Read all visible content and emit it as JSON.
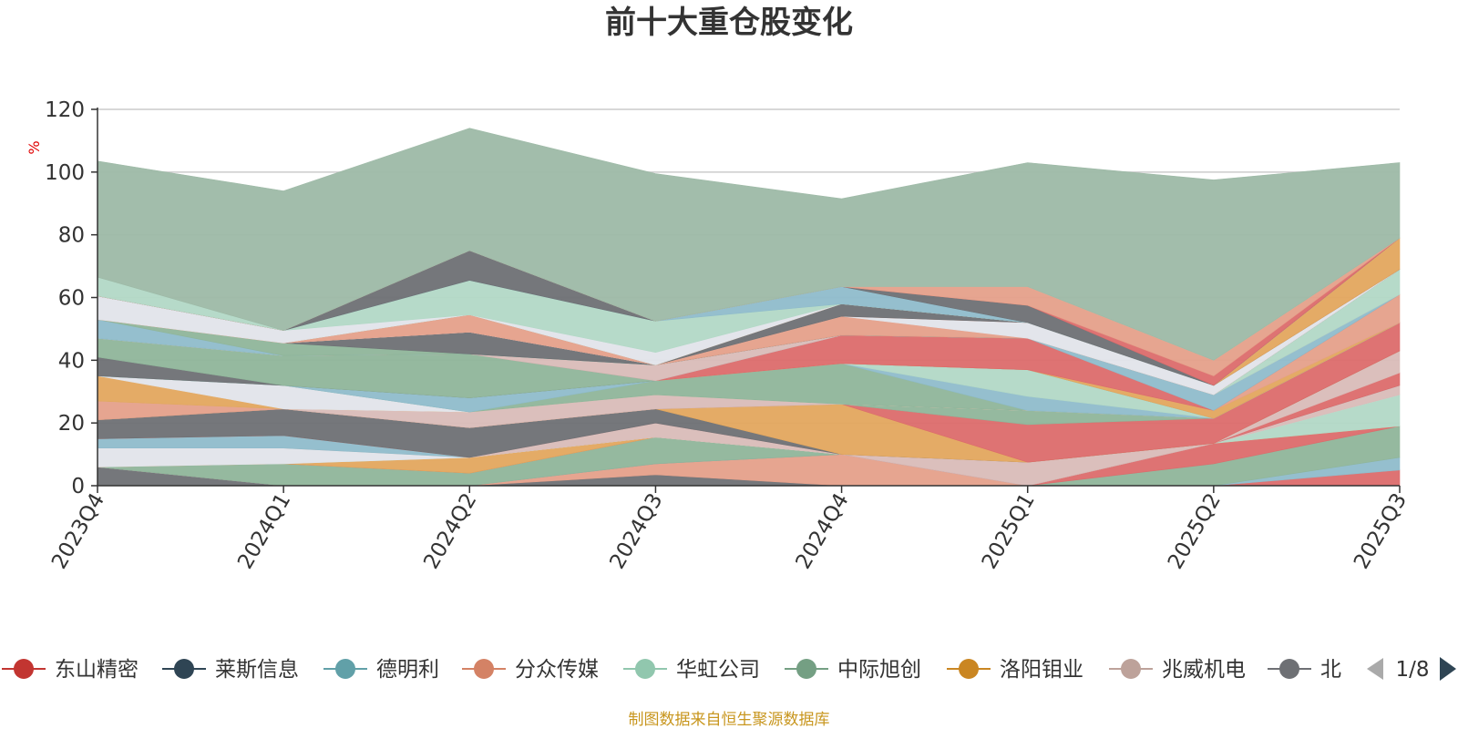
{
  "chart_data": {
    "type": "area",
    "title": "前十大重仓股变化",
    "ylabel": "%",
    "ylim": [
      0,
      120
    ],
    "yticks": [
      0,
      20,
      40,
      60,
      80,
      100,
      120
    ],
    "categories": [
      "2023Q4",
      "2024Q1",
      "2024Q2",
      "2024Q3",
      "2024Q4",
      "2025Q1",
      "2025Q2",
      "2025Q3"
    ],
    "grid": true,
    "stacked": true,
    "series": [
      {
        "name": "北",
        "color": "#6e7074",
        "values": [
          6,
          0,
          0,
          3.5,
          0,
          0,
          0,
          0
        ]
      },
      {
        "name": "",
        "color": "#e5a08a",
        "values": [
          0,
          0,
          0,
          3.5,
          10,
          0,
          0,
          0
        ]
      },
      {
        "name": "东山精密",
        "color": "#dc6b6b",
        "values": [
          0,
          0,
          0,
          0,
          0,
          0,
          0,
          5
        ]
      },
      {
        "name": "德明利",
        "color": "#8fbccb",
        "values": [
          0,
          0,
          0,
          0,
          0,
          0,
          0,
          4
        ]
      },
      {
        "name": "中际旭创",
        "color": "#8fb59a",
        "values": [
          0,
          7,
          4,
          8.5,
          0,
          0,
          7,
          10
        ]
      },
      {
        "name": "",
        "color": "#dc6b6b",
        "values": [
          0,
          0,
          0,
          0,
          0,
          0,
          6.5,
          0
        ]
      },
      {
        "name": "洛阳钼业",
        "color": "#e3a75e",
        "values": [
          0,
          0,
          5,
          0,
          0,
          0,
          0,
          0
        ]
      },
      {
        "name": "华虹公司",
        "color": "#b2d8c6",
        "values": [
          0,
          0,
          0,
          0,
          0,
          0,
          0,
          10
        ]
      },
      {
        "name": "",
        "color": "#e1e4ea",
        "values": [
          6,
          5,
          0,
          0,
          0,
          0,
          0,
          0
        ]
      },
      {
        "name": "兆威机电",
        "color": "#d9bcb8",
        "values": [
          0,
          0,
          0,
          4.5,
          0,
          0,
          0,
          3
        ]
      },
      {
        "name": "",
        "color": "#8fbccb",
        "values": [
          3,
          4,
          0,
          0,
          0,
          0,
          0,
          0
        ]
      },
      {
        "name": "",
        "color": "#dc6b6b",
        "values": [
          0,
          0,
          0,
          0,
          0,
          0,
          0,
          4
        ]
      },
      {
        "name": "",
        "color": "#d9bcb8",
        "values": [
          0,
          0,
          0,
          0,
          0,
          7.5,
          0,
          7
        ]
      },
      {
        "name": "",
        "color": "#6e7074",
        "values": [
          6,
          8.5,
          9.5,
          4.5,
          0,
          0,
          0,
          0
        ]
      },
      {
        "name": "",
        "color": "#e3a75e",
        "values": [
          0,
          0,
          0,
          0,
          16,
          0,
          0,
          0
        ]
      },
      {
        "name": "",
        "color": "#dc6b6b",
        "values": [
          0,
          0,
          0,
          0,
          0,
          12,
          8,
          9
        ]
      },
      {
        "name": "",
        "color": "#8fb59a",
        "values": [
          0,
          0,
          0,
          0,
          0,
          4.5,
          0,
          0
        ]
      },
      {
        "name": "",
        "color": "#e5a08a",
        "values": [
          6,
          0,
          0,
          0,
          0,
          0,
          0,
          0
        ]
      },
      {
        "name": "",
        "color": "#d9bcb8",
        "values": [
          0,
          0,
          5,
          4.5,
          0,
          0,
          0,
          0
        ]
      },
      {
        "name": "",
        "color": "#e3a75e",
        "values": [
          8,
          0,
          0,
          0,
          0,
          0,
          0,
          0
        ]
      },
      {
        "name": "",
        "color": "#e1e4ea",
        "values": [
          0,
          7.5,
          0,
          0,
          0,
          0,
          0,
          0
        ]
      },
      {
        "name": "",
        "color": "#8fb59a",
        "values": [
          0,
          0,
          0,
          4.5,
          13,
          0,
          0,
          0
        ]
      },
      {
        "name": "",
        "color": "#8fbccb",
        "values": [
          0,
          0,
          4.5,
          0,
          0,
          4.5,
          0,
          0
        ]
      },
      {
        "name": "",
        "color": "#b2d8c6",
        "values": [
          0,
          0,
          0,
          0,
          0,
          8.5,
          0,
          0
        ]
      },
      {
        "name": "",
        "color": "#6e7074",
        "values": [
          6,
          0,
          0,
          0,
          0,
          0,
          0,
          0
        ]
      },
      {
        "name": "",
        "color": "#8fb59a",
        "values": [
          6,
          9.5,
          14,
          0,
          0,
          0,
          0,
          0
        ]
      },
      {
        "name": "",
        "color": "#b2d8c6",
        "values": [
          0,
          0,
          0,
          0,
          0,
          0,
          0,
          0
        ]
      },
      {
        "name": "",
        "color": "#e3a75e",
        "values": [
          0,
          0,
          0,
          0,
          0,
          0,
          2.5,
          0
        ]
      },
      {
        "name": "",
        "color": "#e5a08a",
        "values": [
          0,
          0,
          0,
          0,
          0,
          0,
          0,
          9
        ]
      },
      {
        "name": "",
        "color": "#dc6b6b",
        "values": [
          0,
          0,
          0,
          0,
          9,
          10,
          0,
          0
        ]
      },
      {
        "name": "",
        "color": "#8fbccb",
        "values": [
          0,
          0,
          0,
          0,
          0,
          0,
          5,
          0
        ]
      },
      {
        "name": "",
        "color": "#d9bcb8",
        "values": [
          0,
          0,
          0,
          5,
          0,
          0,
          0,
          0
        ]
      },
      {
        "name": "",
        "color": "#b2d8c6",
        "values": [
          0,
          0,
          0,
          0,
          0,
          0,
          0,
          8
        ]
      },
      {
        "name": "",
        "color": "#8fbccb",
        "values": [
          6,
          0,
          0,
          0,
          0,
          0,
          0,
          0
        ]
      },
      {
        "name": "",
        "color": "#8fb59a",
        "values": [
          0,
          4,
          0,
          0,
          0,
          0,
          0,
          0
        ]
      },
      {
        "name": "",
        "color": "#6e7074",
        "values": [
          0,
          0,
          7,
          0,
          0,
          0,
          0,
          0
        ]
      },
      {
        "name": "",
        "color": "#e5a08a",
        "values": [
          0,
          0,
          0,
          0,
          6,
          0,
          0,
          0
        ]
      },
      {
        "name": "",
        "color": "#e1e4ea",
        "values": [
          0,
          0,
          0,
          0,
          0,
          5,
          3,
          0
        ]
      },
      {
        "name": "",
        "color": "#e5a08a",
        "values": [
          0,
          0,
          5.5,
          0,
          0,
          0,
          0,
          0
        ]
      },
      {
        "name": "",
        "color": "#6e7074",
        "values": [
          0,
          0,
          0,
          0,
          4,
          0,
          0,
          0
        ]
      },
      {
        "name": "",
        "color": "#e3a75e",
        "values": [
          0,
          0,
          0,
          0,
          0,
          0,
          0,
          10
        ]
      },
      {
        "name": "",
        "color": "#e1e4ea",
        "values": [
          7.5,
          4,
          0,
          4,
          0,
          0,
          0,
          0
        ]
      },
      {
        "name": "",
        "color": "#b2d8c6",
        "values": [
          0,
          0,
          11,
          10,
          0,
          0,
          0,
          0
        ]
      },
      {
        "name": "",
        "color": "#8fbccb",
        "values": [
          0,
          0,
          0,
          0,
          5.5,
          0,
          0,
          0
        ]
      },
      {
        "name": "",
        "color": "#6e7074",
        "values": [
          0,
          0,
          9.5,
          0,
          0,
          5.5,
          0,
          0
        ]
      },
      {
        "name": "",
        "color": "#dc6b6b",
        "values": [
          0,
          0,
          0,
          0,
          0,
          0,
          3,
          0
        ]
      },
      {
        "name": "",
        "color": "#e5a08a",
        "values": [
          0,
          0,
          0,
          0,
          0,
          6,
          5,
          0
        ]
      },
      {
        "name": "",
        "color": "#b2d8c6",
        "values": [
          6,
          0,
          0,
          0,
          0,
          0,
          0,
          0
        ]
      },
      {
        "name": "",
        "color": "#9db9a6",
        "values": [
          37,
          44.5,
          39,
          47,
          28,
          39.5,
          57.5,
          24
        ]
      }
    ]
  },
  "legend": {
    "items": [
      {
        "label": "东山精密",
        "color": "#c23531"
      },
      {
        "label": "莱斯信息",
        "color": "#2f4554"
      },
      {
        "label": "德明利",
        "color": "#61a0a8"
      },
      {
        "label": "分众传媒",
        "color": "#d48265"
      },
      {
        "label": "华虹公司",
        "color": "#91c7ae"
      },
      {
        "label": "中际旭创",
        "color": "#749f83"
      },
      {
        "label": "洛阳钼业",
        "color": "#ca8622"
      },
      {
        "label": "兆威机电",
        "color": "#bda29a"
      },
      {
        "label": "北",
        "color": "#6e7074"
      }
    ],
    "page": "1/8"
  },
  "footer": "制图数据来自恒生聚源数据库",
  "colors": {
    "title": "#333333",
    "axis": "#333333",
    "grid": "#cccccc",
    "ylabel": "#e00000",
    "footer": "#c8961e",
    "pager_active": "#2f4554",
    "pager_inactive": "#aaaaaa"
  }
}
